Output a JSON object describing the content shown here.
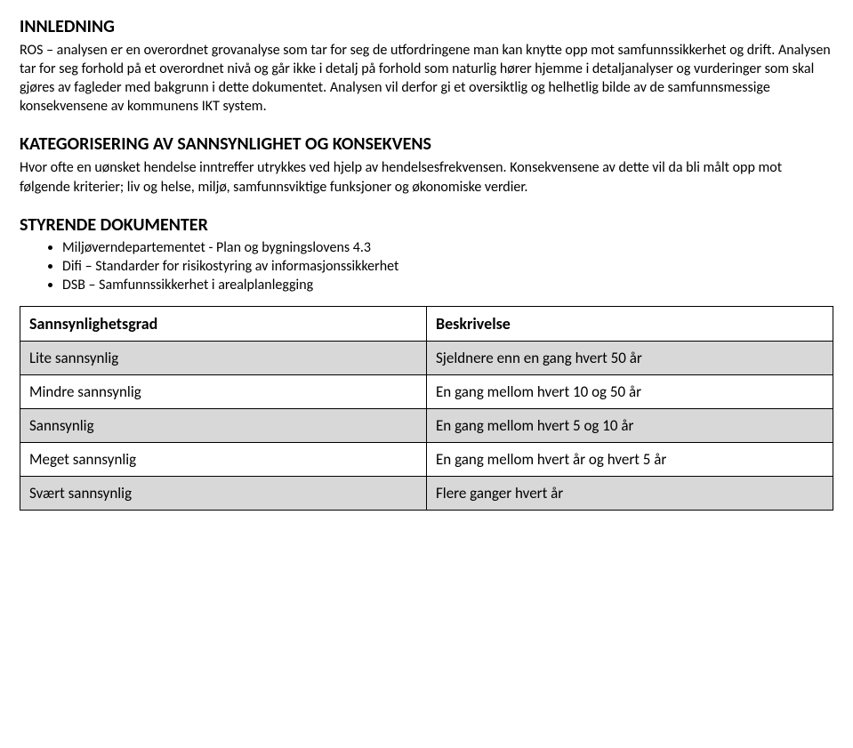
{
  "typography": {
    "heading_fontsize": 20,
    "body_fontsize": 16,
    "table_header_fontsize": 18,
    "table_cell_fontsize": 17,
    "list_fontsize": 16,
    "heading_weight": 700
  },
  "colors": {
    "text": "#000000",
    "background": "#ffffff",
    "table_border": "#000000",
    "shaded_row": "#d8d8d8"
  },
  "sections": {
    "innledning": {
      "title": "INNLEDNING",
      "p1": "ROS – analysen er en overordnet grovanalyse som tar for seg de utfordringene man kan knytte opp mot samfunnssikkerhet og drift. Analysen tar for seg forhold på et overordnet nivå og går ikke i detalj på forhold som naturlig hører hjemme i detaljanalyser og vurderinger som skal gjøres av fagleder med bakgrunn i dette dokumentet. Analysen vil derfor gi et oversiktlig og helhetlig bilde av de samfunnsmessige konsekvensene av kommunens IKT system."
    },
    "kategorisering": {
      "title": "KATEGORISERING AV SANNSYNLIGHET OG KONSEKVENS",
      "p1": "Hvor ofte en uønsket hendelse inntreffer utrykkes ved hjelp av hendelsesfrekvensen. Konsekvensene av dette vil da bli målt opp mot følgende kriterier; liv og helse, miljø, samfunnsviktige funksjoner og økonomiske verdier."
    },
    "styrende": {
      "title": "STYRENDE DOKUMENTER",
      "items": [
        "Miljøverndepartementet - Plan og bygningslovens 4.3",
        "Difi – Standarder for risikostyring av informasjonssikkerhet",
        "DSB – Samfunnssikkerhet i arealplanlegging"
      ]
    }
  },
  "table": {
    "type": "table",
    "columns": [
      "Sannsynlighetsgrad",
      "Beskrivelse"
    ],
    "rows": [
      {
        "cells": [
          "Lite sannsynlig",
          "Sjeldnere enn en gang hvert 50 år"
        ],
        "shaded": true
      },
      {
        "cells": [
          "Mindre sannsynlig",
          "En gang mellom hvert 10 og 50 år"
        ],
        "shaded": false
      },
      {
        "cells": [
          "Sannsynlig",
          "En gang mellom hvert 5 og 10 år"
        ],
        "shaded": true
      },
      {
        "cells": [
          "Meget sannsynlig",
          "En gang mellom hvert år og hvert 5 år"
        ],
        "shaded": false
      },
      {
        "cells": [
          "Svært sannsynlig",
          "Flere ganger hvert år"
        ],
        "shaded": true
      }
    ]
  }
}
